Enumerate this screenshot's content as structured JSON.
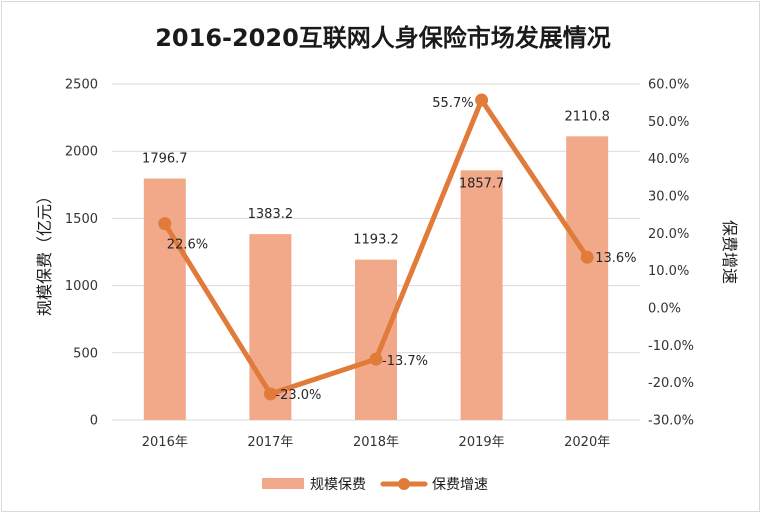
{
  "chart_data": {
    "type": "bar",
    "title": "2016-2020互联网人身保险市场发展情况",
    "categories": [
      "2016年",
      "2017年",
      "2018年",
      "2019年",
      "2020年"
    ],
    "series": [
      {
        "name": "规模保费",
        "type": "bar",
        "axis": "left",
        "values": [
          1796.7,
          1383.2,
          1193.2,
          1857.7,
          2110.8
        ],
        "labels": [
          "1796.7",
          "1383.2",
          "1193.2",
          "1857.7",
          "2110.8"
        ],
        "color": "#f2a98a"
      },
      {
        "name": "保费增速",
        "type": "line",
        "axis": "right",
        "values": [
          22.6,
          -23.0,
          -13.7,
          55.7,
          13.6
        ],
        "labels": [
          "22.6%",
          "-23.0%",
          "-13.7%",
          "55.7%",
          "13.6%"
        ],
        "color": "#e07b39"
      }
    ],
    "left_axis": {
      "label": "规模保费（亿元）",
      "ylim": [
        0,
        2500
      ],
      "ticks": [
        "0",
        "500",
        "1000",
        "1500",
        "2000",
        "2500"
      ]
    },
    "right_axis": {
      "label": "保费增速",
      "ylim": [
        -30,
        60
      ],
      "ticks": [
        "-30.0%",
        "-20.0%",
        "-10.0%",
        "0.0%",
        "10.0%",
        "20.0%",
        "30.0%",
        "40.0%",
        "50.0%",
        "60.0%"
      ]
    },
    "grid": true,
    "legend": "bottom"
  }
}
